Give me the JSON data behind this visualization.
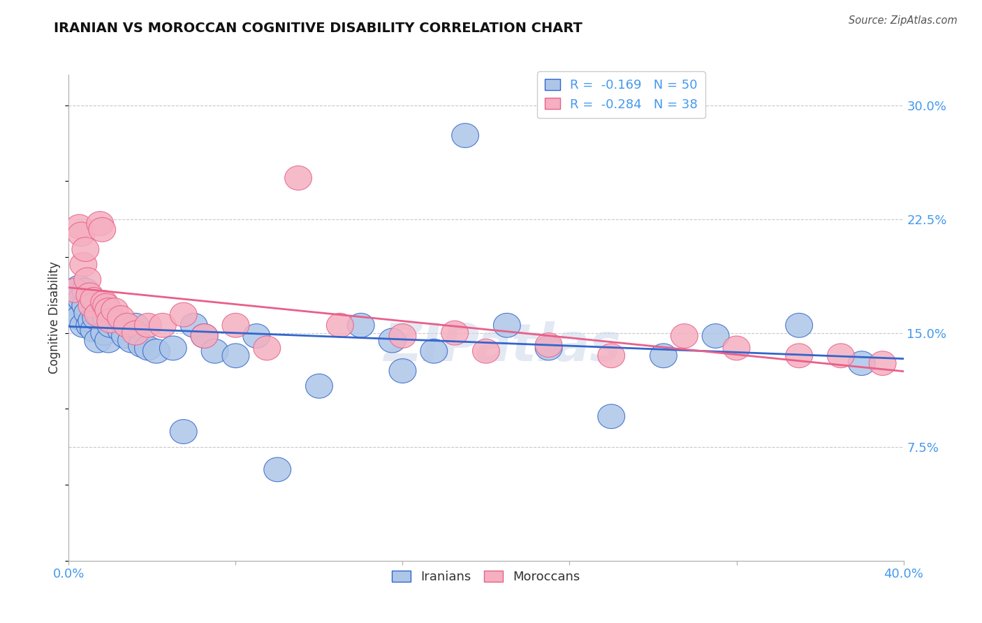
{
  "title": "IRANIAN VS MOROCCAN COGNITIVE DISABILITY CORRELATION CHART",
  "source": "Source: ZipAtlas.com",
  "ylabel": "Cognitive Disability",
  "xlim": [
    0.0,
    0.4
  ],
  "ylim": [
    0.0,
    0.32
  ],
  "xtick_positions": [
    0.0,
    0.08,
    0.16,
    0.24,
    0.32,
    0.4
  ],
  "xticklabels": [
    "0.0%",
    "",
    "",
    "",
    "",
    "40.0%"
  ],
  "ytick_positions": [
    0.075,
    0.15,
    0.225,
    0.3
  ],
  "yticklabels": [
    "7.5%",
    "15.0%",
    "22.5%",
    "30.0%"
  ],
  "grid_color": "#c8c8c8",
  "background_color": "#ffffff",
  "iranian_color": "#adc6e8",
  "moroccan_color": "#f5afc0",
  "iranian_line_color": "#3366cc",
  "moroccan_line_color": "#e8608a",
  "R_iranian": -0.169,
  "N_iranian": 50,
  "R_moroccan": -0.284,
  "N_moroccan": 38,
  "watermark": "ZIPatlas",
  "iranians_x": [
    0.002,
    0.003,
    0.004,
    0.005,
    0.005,
    0.006,
    0.007,
    0.008,
    0.008,
    0.009,
    0.01,
    0.011,
    0.012,
    0.013,
    0.014,
    0.015,
    0.016,
    0.017,
    0.018,
    0.019,
    0.02,
    0.022,
    0.025,
    0.027,
    0.03,
    0.032,
    0.035,
    0.038,
    0.042,
    0.05,
    0.055,
    0.06,
    0.065,
    0.07,
    0.08,
    0.09,
    0.1,
    0.12,
    0.14,
    0.155,
    0.16,
    0.175,
    0.19,
    0.21,
    0.23,
    0.26,
    0.285,
    0.31,
    0.35,
    0.38
  ],
  "iranians_y": [
    0.17,
    0.175,
    0.165,
    0.18,
    0.16,
    0.172,
    0.155,
    0.168,
    0.178,
    0.163,
    0.155,
    0.158,
    0.152,
    0.16,
    0.145,
    0.162,
    0.168,
    0.15,
    0.16,
    0.145,
    0.155,
    0.158,
    0.152,
    0.148,
    0.145,
    0.155,
    0.142,
    0.14,
    0.138,
    0.14,
    0.085,
    0.155,
    0.148,
    0.138,
    0.135,
    0.148,
    0.06,
    0.115,
    0.155,
    0.145,
    0.125,
    0.138,
    0.28,
    0.155,
    0.14,
    0.095,
    0.135,
    0.148,
    0.155,
    0.13
  ],
  "moroccans_x": [
    0.003,
    0.005,
    0.006,
    0.007,
    0.008,
    0.009,
    0.01,
    0.011,
    0.012,
    0.014,
    0.015,
    0.016,
    0.017,
    0.018,
    0.019,
    0.02,
    0.022,
    0.025,
    0.028,
    0.032,
    0.038,
    0.045,
    0.055,
    0.065,
    0.08,
    0.095,
    0.11,
    0.13,
    0.16,
    0.185,
    0.2,
    0.23,
    0.26,
    0.295,
    0.32,
    0.35,
    0.37,
    0.39
  ],
  "moroccans_y": [
    0.178,
    0.22,
    0.215,
    0.195,
    0.205,
    0.185,
    0.175,
    0.168,
    0.172,
    0.162,
    0.222,
    0.218,
    0.17,
    0.168,
    0.165,
    0.158,
    0.165,
    0.16,
    0.155,
    0.15,
    0.155,
    0.155,
    0.162,
    0.148,
    0.155,
    0.14,
    0.252,
    0.155,
    0.148,
    0.15,
    0.138,
    0.142,
    0.135,
    0.148,
    0.14,
    0.135,
    0.135,
    0.13
  ]
}
